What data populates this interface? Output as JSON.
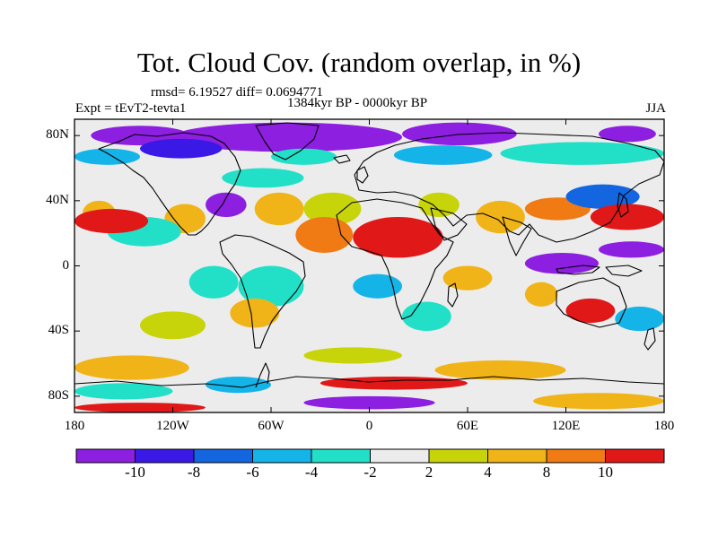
{
  "title": "Tot. Cloud Cov. (random overlap, in %)",
  "stats": "rmsd= 6.19527 diff= 0.0694771",
  "period": "1384kyr BP - 0000kyr BP",
  "experiment": "Expt = tEvT2-tevta1",
  "season": "JJA",
  "lat_ticks": [
    {
      "label": "80N",
      "lat": 80
    },
    {
      "label": "40N",
      "lat": 40
    },
    {
      "label": "0",
      "lat": 0
    },
    {
      "label": "40S",
      "lat": -40
    },
    {
      "label": "80S",
      "lat": -80
    }
  ],
  "lon_ticks": [
    {
      "label": "180",
      "lon": -180
    },
    {
      "label": "120W",
      "lon": -120
    },
    {
      "label": "60W",
      "lon": -60
    },
    {
      "label": "0",
      "lon": 0
    },
    {
      "label": "60E",
      "lon": 60
    },
    {
      "label": "120E",
      "lon": 120
    },
    {
      "label": "180",
      "lon": 180
    }
  ],
  "colorbar": {
    "labels": [
      "-10",
      "-8",
      "-6",
      "-4",
      "-2",
      "2",
      "4",
      "8",
      "10"
    ],
    "colors": [
      "#8c1fe0",
      "#3a18e6",
      "#1466e0",
      "#14b4e8",
      "#22e0c8",
      "#ececec",
      "#c8d40a",
      "#f0b418",
      "#f07a14",
      "#e01818"
    ]
  },
  "palette": {
    "purple": "#8c1fe0",
    "blue": "#3a18e6",
    "mblue": "#1466e0",
    "cyan": "#14b4e8",
    "teal": "#22e0c8",
    "neutral": "#ececec",
    "yellow": "#c8d40a",
    "orange": "#f0b418",
    "dorange": "#f07a14",
    "red": "#e01818"
  },
  "chart_data": {
    "type": "heatmap",
    "title": "Tot. Cloud Cov. (random overlap, in %)",
    "variable": "total cloud cover difference (%)",
    "season": "JJA",
    "lon_range": [
      -180,
      180
    ],
    "lat_range": [
      -90,
      90
    ],
    "levels": [
      -10,
      -8,
      -6,
      -4,
      -2,
      2,
      4,
      8,
      10
    ],
    "anomaly_regions": [
      {
        "lon": [
          -120,
          20
        ],
        "lat": [
          70,
          88
        ],
        "level": "purple"
      },
      {
        "lon": [
          20,
          90
        ],
        "lat": [
          74,
          88
        ],
        "level": "purple"
      },
      {
        "lon": [
          -170,
          -110
        ],
        "lat": [
          74,
          86
        ],
        "level": "purple"
      },
      {
        "lon": [
          140,
          175
        ],
        "lat": [
          76,
          86
        ],
        "level": "purple"
      },
      {
        "lon": [
          -140,
          -90
        ],
        "lat": [
          66,
          78
        ],
        "level": "blue"
      },
      {
        "lon": [
          15,
          75
        ],
        "lat": [
          62,
          74
        ],
        "level": "cyan"
      },
      {
        "lon": [
          -180,
          -140
        ],
        "lat": [
          62,
          72
        ],
        "level": "cyan"
      },
      {
        "lon": [
          -60,
          -20
        ],
        "lat": [
          62,
          72
        ],
        "level": "teal"
      },
      {
        "lon": [
          80,
          180
        ],
        "lat": [
          62,
          76
        ],
        "level": "teal"
      },
      {
        "lon": [
          -90,
          -40
        ],
        "lat": [
          48,
          60
        ],
        "level": "teal"
      },
      {
        "lon": [
          -100,
          -75
        ],
        "lat": [
          30,
          45
        ],
        "level": "purple"
      },
      {
        "lon": [
          -125,
          -100
        ],
        "lat": [
          20,
          38
        ],
        "level": "orange"
      },
      {
        "lon": [
          -160,
          -115
        ],
        "lat": [
          12,
          30
        ],
        "level": "teal"
      },
      {
        "lon": [
          -175,
          -155
        ],
        "lat": [
          25,
          40
        ],
        "level": "orange"
      },
      {
        "lon": [
          -180,
          -135
        ],
        "lat": [
          20,
          35
        ],
        "level": "red"
      },
      {
        "lon": [
          -70,
          -40
        ],
        "lat": [
          25,
          45
        ],
        "level": "orange"
      },
      {
        "lon": [
          -40,
          -5
        ],
        "lat": [
          25,
          45
        ],
        "level": "yellow"
      },
      {
        "lon": [
          -45,
          -10
        ],
        "lat": [
          8,
          30
        ],
        "level": "dorange"
      },
      {
        "lon": [
          -10,
          45
        ],
        "lat": [
          5,
          30
        ],
        "level": "red"
      },
      {
        "lon": [
          30,
          55
        ],
        "lat": [
          30,
          45
        ],
        "level": "yellow"
      },
      {
        "lon": [
          65,
          95
        ],
        "lat": [
          20,
          40
        ],
        "level": "orange"
      },
      {
        "lon": [
          95,
          135
        ],
        "lat": [
          28,
          42
        ],
        "level": "dorange"
      },
      {
        "lon": [
          120,
          165
        ],
        "lat": [
          35,
          50
        ],
        "level": "mblue"
      },
      {
        "lon": [
          135,
          180
        ],
        "lat": [
          22,
          38
        ],
        "level": "red"
      },
      {
        "lon": [
          140,
          180
        ],
        "lat": [
          5,
          15
        ],
        "level": "purple"
      },
      {
        "lon": [
          95,
          140
        ],
        "lat": [
          -5,
          8
        ],
        "level": "purple"
      },
      {
        "lon": [
          -110,
          -80
        ],
        "lat": [
          -20,
          0
        ],
        "level": "teal"
      },
      {
        "lon": [
          -80,
          -40
        ],
        "lat": [
          -25,
          0
        ],
        "level": "teal"
      },
      {
        "lon": [
          -85,
          -55
        ],
        "lat": [
          -38,
          -20
        ],
        "level": "orange"
      },
      {
        "lon": [
          -140,
          -100
        ],
        "lat": [
          -45,
          -28
        ],
        "level": "yellow"
      },
      {
        "lon": [
          -10,
          20
        ],
        "lat": [
          -20,
          -5
        ],
        "level": "cyan"
      },
      {
        "lon": [
          20,
          50
        ],
        "lat": [
          -40,
          -22
        ],
        "level": "teal"
      },
      {
        "lon": [
          45,
          75
        ],
        "lat": [
          -15,
          0
        ],
        "level": "orange"
      },
      {
        "lon": [
          120,
          150
        ],
        "lat": [
          -35,
          -20
        ],
        "level": "red"
      },
      {
        "lon": [
          95,
          115
        ],
        "lat": [
          -25,
          -10
        ],
        "level": "orange"
      },
      {
        "lon": [
          150,
          180
        ],
        "lat": [
          -40,
          -25
        ],
        "level": "cyan"
      },
      {
        "lon": [
          -180,
          -110
        ],
        "lat": [
          -70,
          -55
        ],
        "level": "orange"
      },
      {
        "lon": [
          -40,
          20
        ],
        "lat": [
          -60,
          -50
        ],
        "level": "yellow"
      },
      {
        "lon": [
          40,
          120
        ],
        "lat": [
          -70,
          -58
        ],
        "level": "orange"
      },
      {
        "lon": [
          -100,
          -60
        ],
        "lat": [
          -78,
          -68
        ],
        "level": "cyan"
      },
      {
        "lon": [
          -30,
          60
        ],
        "lat": [
          -76,
          -68
        ],
        "level": "red"
      },
      {
        "lon": [
          -180,
          -120
        ],
        "lat": [
          -82,
          -72
        ],
        "level": "teal"
      },
      {
        "lon": [
          -40,
          40
        ],
        "lat": [
          -88,
          -80
        ],
        "level": "purple"
      },
      {
        "lon": [
          100,
          180
        ],
        "lat": [
          -88,
          -78
        ],
        "level": "orange"
      },
      {
        "lon": [
          -180,
          -100
        ],
        "lat": [
          -90,
          -84
        ],
        "level": "red"
      }
    ]
  }
}
